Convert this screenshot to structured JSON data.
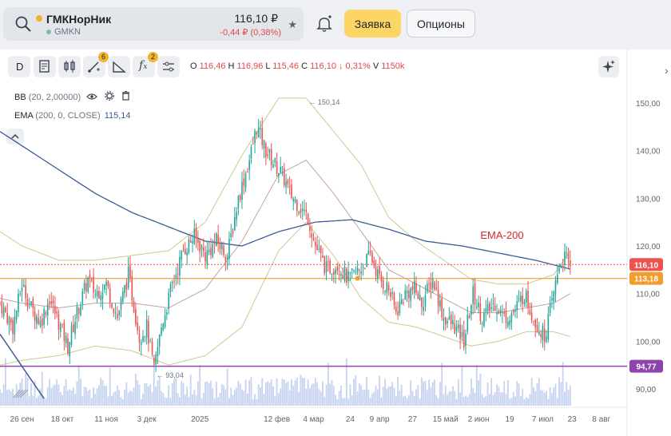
{
  "ticker": {
    "name": "ГМКНорНик",
    "code": "GMKN",
    "price": "116,10 ₽",
    "change": "-0,44 ₽ (0,38%)"
  },
  "buttons": {
    "order": "Заявка",
    "options": "Опционы"
  },
  "toolbar": {
    "timeframe": "D",
    "drawing_badge": "6",
    "indicator_badge": "2"
  },
  "ohlc": {
    "o_label": "O",
    "o": "116,46",
    "h_label": "H",
    "h": "116,96",
    "l_label": "L",
    "l": "115,46",
    "c_label": "C",
    "c": "116,10",
    "change": "↓ 0,31%",
    "v_label": "V",
    "v": "1150k"
  },
  "indicators": {
    "bb": {
      "name": "BB",
      "params": "(20, 2,00000)"
    },
    "ema": {
      "name": "EMA",
      "params": "(200, 0, CLOSE)",
      "value": "115,14"
    }
  },
  "colors": {
    "up": "#26a69a",
    "down": "#ef5350",
    "ema": "#3c5a99",
    "bb": "#c7cc8f",
    "bb_mid": "#c4a3a3",
    "orange": "#f39c2b",
    "purple": "#8e44ad",
    "volume": "#c7d3f0",
    "trend": "#3c5a99"
  },
  "chart_data": {
    "type": "candlestick",
    "y_ticks": [
      "150,00",
      "140,00",
      "130,00",
      "120,00",
      "110,00",
      "100,00",
      "90,00"
    ],
    "y_values": [
      150,
      140,
      130,
      120,
      110,
      100,
      90
    ],
    "ylim": [
      87.5,
      154.5
    ],
    "x_ticks": [
      "26 сен",
      "18 окт",
      "11 ноя",
      "3 дек",
      "2025",
      "12 фев",
      "4 мар",
      "24",
      "9 апр",
      "27",
      "15 май",
      "2 июн",
      "19",
      "7 июл",
      "23",
      "8 авг"
    ],
    "x_tick_days": [
      0,
      22,
      46,
      68,
      97,
      139,
      159,
      179,
      195,
      213,
      231,
      249,
      266,
      284,
      300,
      316
    ],
    "x_range_days": [
      -12,
      330
    ],
    "price_labels": {
      "last": "116,10",
      "orange_level": "113,18",
      "purple_level": "94,77"
    },
    "levels": {
      "last": 116.1,
      "orange": 113.18,
      "purple": 94.77
    },
    "annotations": {
      "high": "150,14",
      "low": "93,04",
      "ema_label": "EMA-200"
    },
    "high_point": {
      "day": 155,
      "value": 150.14
    },
    "low_point": {
      "day": 72,
      "value": 93.04
    },
    "close_anchors": [
      [
        -12,
        108
      ],
      [
        -5,
        103
      ],
      [
        0,
        112
      ],
      [
        5,
        107
      ],
      [
        10,
        104
      ],
      [
        15,
        109
      ],
      [
        20,
        104
      ],
      [
        25,
        99
      ],
      [
        30,
        106
      ],
      [
        36,
        113
      ],
      [
        40,
        110
      ],
      [
        46,
        112
      ],
      [
        52,
        105
      ],
      [
        58,
        114
      ],
      [
        64,
        101
      ],
      [
        68,
        103
      ],
      [
        72,
        94
      ],
      [
        76,
        103
      ],
      [
        82,
        112
      ],
      [
        88,
        119
      ],
      [
        94,
        122
      ],
      [
        100,
        118
      ],
      [
        106,
        121
      ],
      [
        112,
        118
      ],
      [
        118,
        130
      ],
      [
        124,
        138
      ],
      [
        128,
        145
      ],
      [
        133,
        140
      ],
      [
        138,
        137
      ],
      [
        142,
        135
      ],
      [
        146,
        131
      ],
      [
        150,
        129
      ],
      [
        156,
        126
      ],
      [
        160,
        120
      ],
      [
        166,
        115
      ],
      [
        172,
        116
      ],
      [
        178,
        113
      ],
      [
        184,
        115
      ],
      [
        190,
        118
      ],
      [
        195,
        113
      ],
      [
        200,
        111
      ],
      [
        204,
        106
      ],
      [
        209,
        110
      ],
      [
        214,
        111
      ],
      [
        218,
        108
      ],
      [
        224,
        113
      ],
      [
        230,
        105
      ],
      [
        236,
        103
      ],
      [
        241,
        100
      ],
      [
        246,
        110
      ],
      [
        251,
        105
      ],
      [
        258,
        108
      ],
      [
        263,
        105
      ],
      [
        268,
        106
      ],
      [
        274,
        110
      ],
      [
        280,
        104
      ],
      [
        285,
        101
      ],
      [
        289,
        108
      ],
      [
        293,
        116
      ],
      [
        296,
        117.5
      ],
      [
        299,
        116.1
      ]
    ],
    "ema_anchors": [
      [
        -12,
        144
      ],
      [
        0,
        141
      ],
      [
        20,
        136
      ],
      [
        40,
        131
      ],
      [
        60,
        127
      ],
      [
        80,
        124
      ],
      [
        100,
        121
      ],
      [
        120,
        120
      ],
      [
        140,
        123
      ],
      [
        160,
        125
      ],
      [
        180,
        125.5
      ],
      [
        200,
        123.5
      ],
      [
        220,
        121
      ],
      [
        240,
        120
      ],
      [
        260,
        118.5
      ],
      [
        280,
        117
      ],
      [
        299,
        115.14
      ]
    ],
    "bb_mid_anchors": [
      [
        -12,
        109
      ],
      [
        0,
        108
      ],
      [
        20,
        107
      ],
      [
        40,
        108
      ],
      [
        60,
        108
      ],
      [
        80,
        107
      ],
      [
        100,
        111
      ],
      [
        120,
        121
      ],
      [
        140,
        135
      ],
      [
        155,
        138
      ],
      [
        170,
        131
      ],
      [
        185,
        123
      ],
      [
        200,
        115
      ],
      [
        215,
        112
      ],
      [
        230,
        109
      ],
      [
        245,
        106
      ],
      [
        260,
        106
      ],
      [
        275,
        107
      ],
      [
        290,
        108
      ],
      [
        299,
        110
      ]
    ],
    "bb_width_anchors": [
      [
        -12,
        14
      ],
      [
        0,
        12
      ],
      [
        20,
        10
      ],
      [
        40,
        9
      ],
      [
        60,
        10
      ],
      [
        80,
        12
      ],
      [
        100,
        14
      ],
      [
        120,
        18
      ],
      [
        140,
        16
      ],
      [
        155,
        13
      ],
      [
        170,
        13
      ],
      [
        185,
        14
      ],
      [
        200,
        11
      ],
      [
        215,
        9
      ],
      [
        230,
        8
      ],
      [
        245,
        7
      ],
      [
        260,
        6
      ],
      [
        275,
        5
      ],
      [
        290,
        6
      ],
      [
        299,
        9
      ]
    ],
    "trend_line": [
      [
        -12,
        101.5
      ],
      [
        12,
        88
      ]
    ]
  }
}
